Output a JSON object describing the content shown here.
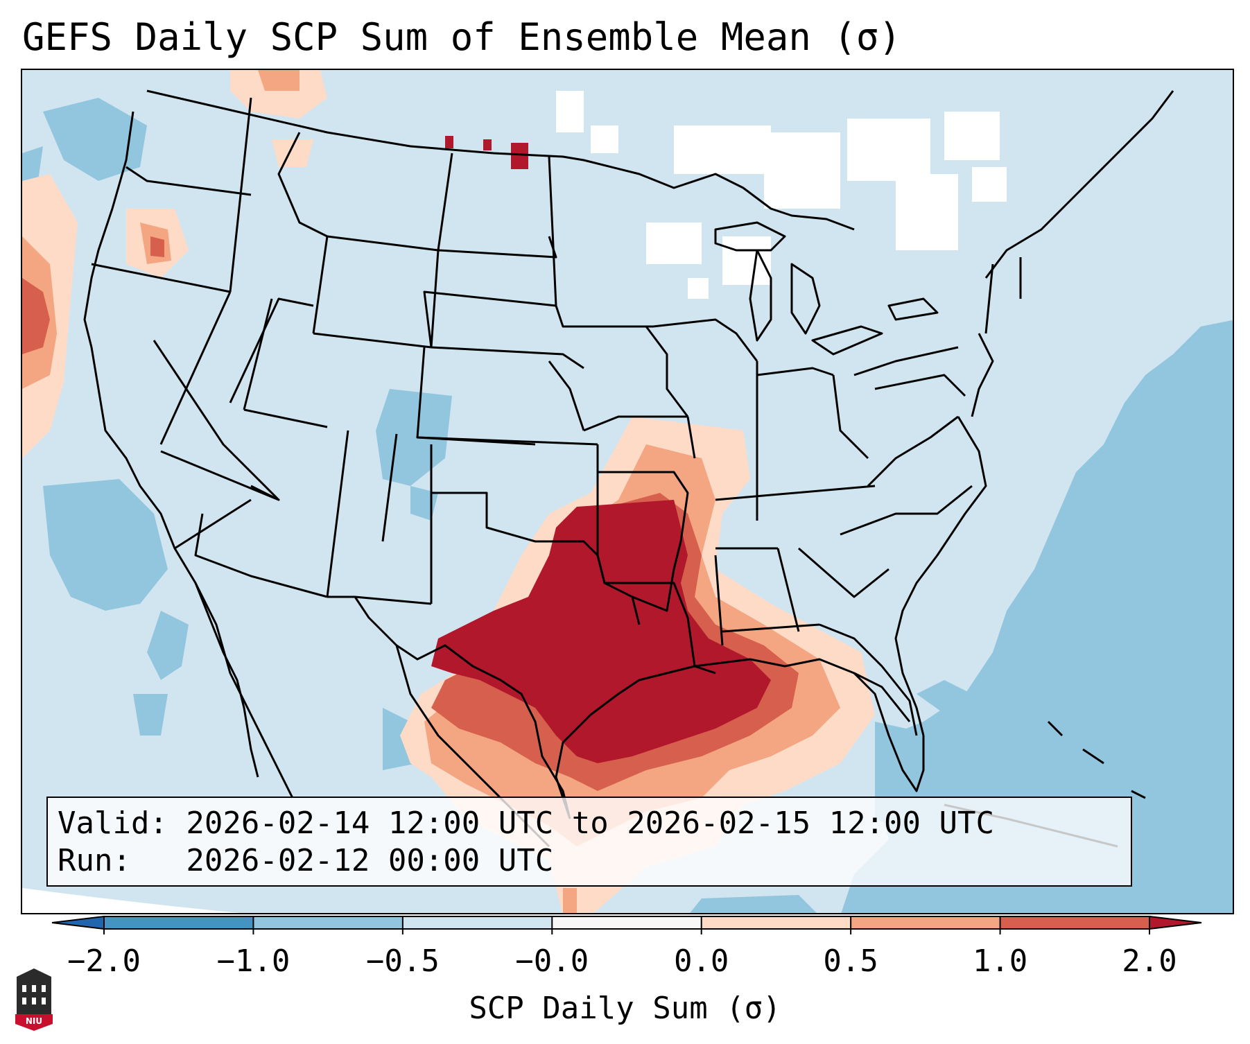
{
  "figure": {
    "title": "GEFS Daily SCP Sum of Ensemble Mean (σ)",
    "valid_line": "Valid: 2026-02-14 12:00 UTC to 2026-02-15 12:00 UTC",
    "run_line": "Run:   2026-02-12 00:00 UTC"
  },
  "colorbar": {
    "label": "SCP Daily Sum (σ)",
    "ticks": [
      "−2.0",
      "−1.0",
      "−0.5",
      "−0.0",
      "0.0",
      "0.5",
      "1.0",
      "2.0"
    ],
    "colors": [
      "#4393c3",
      "#92c5de",
      "#d1e5f0",
      "#f7f7f7",
      "#fddbc7",
      "#f4a582",
      "#d6604d"
    ],
    "under_color": "#2166ac",
    "over_color": "#b2182b"
  },
  "map_colors": {
    "background_field": "#d1e5f0",
    "ocean_east": "#92c5de",
    "strong_positive": "#b2182b",
    "moderate_positive": "#d6604d",
    "weak_positive": "#f4a582",
    "slight_positive": "#fddbc7",
    "near_zero": "#ffffff"
  },
  "logo": {
    "text": "NIU"
  }
}
